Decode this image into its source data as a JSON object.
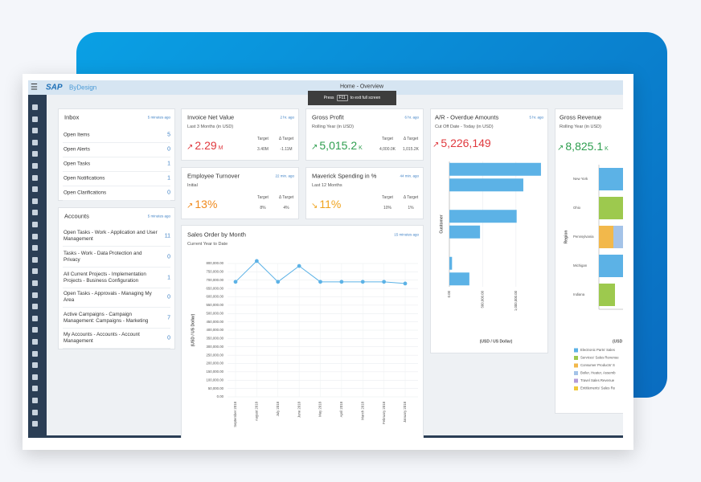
{
  "app": {
    "logo": "SAP",
    "product": "ByDesign",
    "page_title": "Home - Overview",
    "toast": {
      "text_before": "Press",
      "key": "F11",
      "text_after": "to exit full screen"
    }
  },
  "inbox": {
    "title": "Inbox",
    "updated": "5 minutes ago",
    "rows": [
      {
        "label": "Open Items",
        "count": 5
      },
      {
        "label": "Open Alerts",
        "count": 0
      },
      {
        "label": "Open Tasks",
        "count": 1
      },
      {
        "label": "Open Notifications",
        "count": 1
      },
      {
        "label": "Open Clarifications",
        "count": 0
      }
    ]
  },
  "accounts": {
    "title": "Accounts",
    "updated": "5 minutes ago",
    "rows": [
      {
        "label": "Open Tasks - Work - Application and User Management",
        "count": 11
      },
      {
        "label": "Tasks - Work - Data Protection and Privacy",
        "count": 0
      },
      {
        "label": "All Current Projects - Implementation Projects - Business Configuration",
        "count": 1
      },
      {
        "label": "Open Tasks - Approvals - Managing My Area",
        "count": 0
      },
      {
        "label": "Active Campaigns - Campaign Management: Campaigns - Marketing",
        "count": 7
      },
      {
        "label": "My Accounts - Accounts - Account Management",
        "count": 0
      }
    ]
  },
  "kpis": [
    {
      "title": "Invoice Net Value",
      "updated": "2 hr. ago",
      "subtitle": "Last 3 Months (in USD)",
      "trend": "↗",
      "value": "2.29",
      "unit": "M",
      "target_label": "Target",
      "target": "3.40M",
      "delta_label": "Δ Target",
      "delta": "-1.11M",
      "color": "#e0393e"
    },
    {
      "title": "Gross Profit",
      "updated": "6 hr. ago",
      "subtitle": "Rolling Year (in USD)",
      "trend": "↗",
      "value": "5,015.2",
      "unit": "K",
      "target_label": "Target",
      "target": "4,000.0K",
      "delta_label": "Δ Target",
      "delta": "1,015.2K",
      "color": "#2e9e4f"
    },
    {
      "title": "Employee Turnover",
      "updated": "22 min. ago",
      "subtitle": "Initial",
      "trend": "↗",
      "value": "13%",
      "unit": "",
      "target_label": "Target",
      "target": "8%",
      "delta_label": "Δ Target",
      "delta": "4%",
      "color": "#f08a1d"
    },
    {
      "title": "Maverick Spending in %",
      "updated": "44 min. ago",
      "subtitle": "Last 12 Months",
      "trend": "↘",
      "value": "11%",
      "unit": "",
      "target_label": "Target",
      "target": "10%",
      "delta_label": "Δ Target",
      "delta": "1%",
      "color": "#f0a31d"
    }
  ],
  "sales_chart": {
    "type": "line",
    "title": "Sales Order by Month",
    "subtitle": "Current Year to Date",
    "updated": "15 minutes ago",
    "y_label": "(USD / US Dollar)",
    "color": "#5cb2e6",
    "grid": true,
    "categories": [
      "September 2018",
      "August 2018",
      "July 2018",
      "June 2018",
      "May 2018",
      "April 2018",
      "March 2018",
      "February 2018",
      "January 2018"
    ],
    "values": [
      690000,
      815000,
      690000,
      785000,
      690000,
      690000,
      690000,
      690000,
      680000
    ],
    "ylim": [
      0,
      800000
    ],
    "yticks": [
      {
        "value": 0,
        "label": "0.00"
      },
      {
        "value": 50000,
        "label": "50,000.00"
      },
      {
        "value": 100000,
        "label": "100,000.00"
      },
      {
        "value": 150000,
        "label": "150,000.00"
      },
      {
        "value": 200000,
        "label": "200,000.00"
      },
      {
        "value": 250000,
        "label": "250,000.00"
      },
      {
        "value": 300000,
        "label": "300,000.00"
      },
      {
        "value": 350000,
        "label": "350,000.00"
      },
      {
        "value": 400000,
        "label": "400,000.00"
      },
      {
        "value": 450000,
        "label": "450,000.00"
      },
      {
        "value": 500000,
        "label": "500,000.00"
      },
      {
        "value": 550000,
        "label": "550,000.00"
      },
      {
        "value": 600000,
        "label": "600,000.00"
      },
      {
        "value": 650000,
        "label": "650,000.00"
      },
      {
        "value": 700000,
        "label": "700,000.00"
      },
      {
        "value": 750000,
        "label": "750,000.00"
      },
      {
        "value": 800000,
        "label": "800,000.00"
      }
    ]
  },
  "ar_chart": {
    "type": "hbar",
    "title": "A/R - Overdue Amounts",
    "updated": "5 hr. ago",
    "subtitle": "Cut Off Date - Today (in USD)",
    "trend": "↗",
    "value": "5,226,149",
    "color": "#5cb2e6",
    "trend_color": "#e0393e",
    "y_label": "Customer",
    "x_label": "(USD / US Dollar)",
    "categories": [
      null,
      null,
      null,
      null,
      null,
      null,
      null,
      null
    ],
    "values": [
      1375000,
      1110000,
      null,
      1010000,
      460000,
      null,
      40000,
      300000
    ],
    "xlim": [
      0,
      1400000
    ],
    "xticks": [
      {
        "value": 0,
        "label": "0.00"
      },
      {
        "value": 500000,
        "label": "500,000.00"
      },
      {
        "value": 1000000,
        "label": "1,000,000.00"
      }
    ]
  },
  "revenue_chart": {
    "type": "stacked-hbar",
    "title": "Gross Revenue",
    "subtitle": "Rolling Year (in USD)",
    "trend": "↗",
    "value": "8,825.1",
    "unit": "K",
    "trend_color": "#2e9e4f",
    "y_label": "Region",
    "x_label": "(USD",
    "categories": [
      "New York",
      "Ohio",
      "Pennsylvania",
      "Michigan",
      "Indiana"
    ],
    "xlim": [
      0,
      1000000
    ],
    "series": [
      {
        "name": "Electronic Parts' Sales",
        "color": "#5cb2e6",
        "values": [
          900000,
          0,
          0,
          900000,
          0
        ]
      },
      {
        "name": "Services' Sales Revenue",
        "color": "#9dc94e",
        "values": [
          0,
          900000,
          0,
          0,
          200000
        ]
      },
      {
        "name": "Consumer Products' S",
        "color": "#f2b84b",
        "values": [
          0,
          0,
          180000,
          0,
          0
        ]
      },
      {
        "name": "Boiler, Heater, Assemb",
        "color": "#a4c3e8",
        "values": [
          0,
          0,
          700000,
          0,
          0
        ]
      },
      {
        "name": "Travel Sales Revenue",
        "color": "#b39bd8",
        "values": [
          0,
          0,
          0,
          0,
          0
        ]
      },
      {
        "name": "Entitlements' Sales Re",
        "color": "#f0c93a",
        "values": [
          0,
          0,
          0,
          0,
          0
        ]
      }
    ]
  }
}
